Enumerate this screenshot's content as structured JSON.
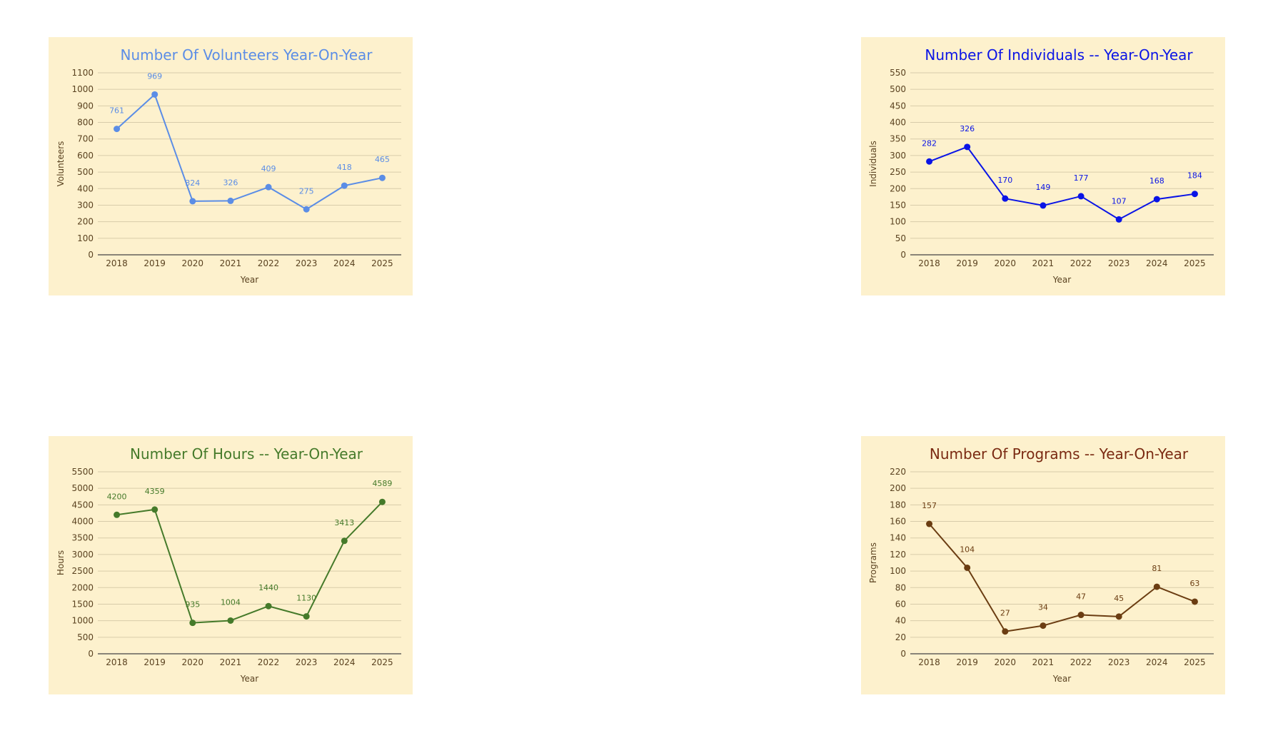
{
  "chart_data": [
    {
      "type": "line",
      "title": "Number Of Volunteers Year-On-Year",
      "xlabel": "Year",
      "ylabel": "Volunteers",
      "color": "#5b8de6",
      "categories": [
        "2018",
        "2019",
        "2020",
        "2021",
        "2022",
        "2023",
        "2024",
        "2025"
      ],
      "values": [
        761,
        969,
        324,
        326,
        409,
        275,
        418,
        465
      ],
      "ylim": [
        0,
        1100
      ],
      "ytick_step": 100,
      "grid": true
    },
    {
      "type": "line",
      "title": "Number Of Individuals -- Year-On-Year",
      "xlabel": "Year",
      "ylabel": "Individuals",
      "color": "#0a14e6",
      "categories": [
        "2018",
        "2019",
        "2020",
        "2021",
        "2022",
        "2023",
        "2024",
        "2025"
      ],
      "values": [
        282,
        326,
        170,
        149,
        177,
        107,
        168,
        184
      ],
      "ylim": [
        0,
        550
      ],
      "ytick_step": 50,
      "grid": true
    },
    {
      "type": "line",
      "title": "Number Of Hours -- Year-On-Year",
      "xlabel": "Year",
      "ylabel": "Hours",
      "color": "#457a2a",
      "categories": [
        "2018",
        "2019",
        "2020",
        "2021",
        "2022",
        "2023",
        "2024",
        "2025"
      ],
      "values": [
        4200,
        4359,
        935,
        1004,
        1440,
        1130,
        3413,
        4589
      ],
      "ylim": [
        0,
        5500
      ],
      "ytick_step": 500,
      "grid": true
    },
    {
      "type": "line",
      "title": "Number Of Programs -- Year-On-Year",
      "xlabel": "Year",
      "ylabel": "Programs",
      "color": "#6b3d12",
      "title_color": "#7a2a12",
      "categories": [
        "2018",
        "2019",
        "2020",
        "2021",
        "2022",
        "2023",
        "2024",
        "2025"
      ],
      "values": [
        157,
        104,
        27,
        34,
        47,
        45,
        81,
        63
      ],
      "ylim": [
        0,
        220
      ],
      "ytick_step": 20,
      "grid": true
    }
  ]
}
